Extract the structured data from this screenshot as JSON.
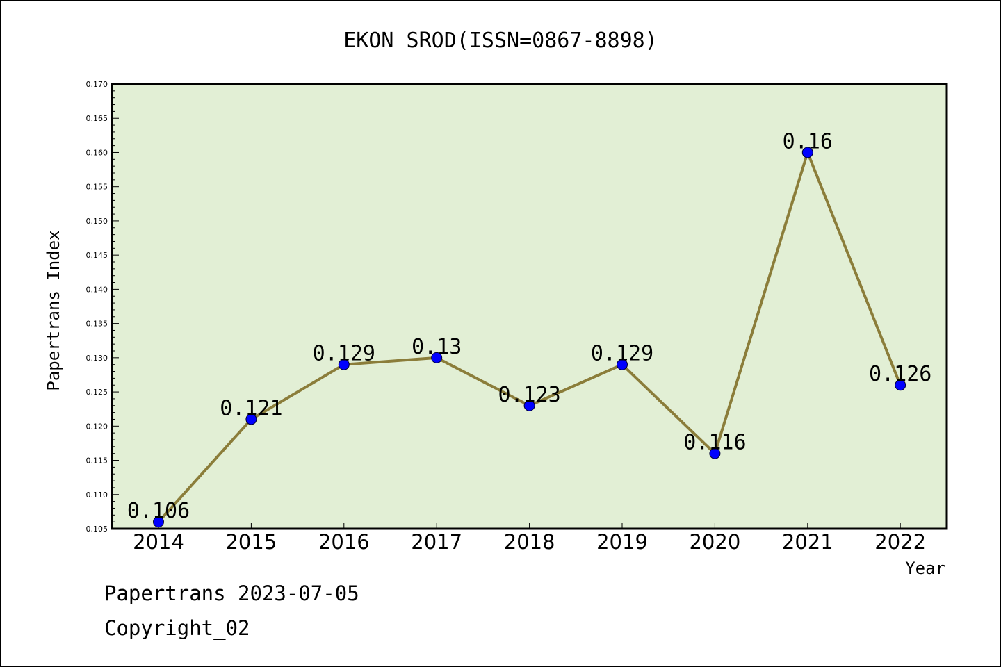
{
  "chart_data": {
    "type": "line",
    "title": "EKON SROD(ISSN=0867-8898)",
    "xlabel": "Year",
    "ylabel": "Papertrans Index",
    "categories": [
      "2014",
      "2015",
      "2016",
      "2017",
      "2018",
      "2019",
      "2020",
      "2021",
      "2022"
    ],
    "values": [
      0.106,
      0.121,
      0.129,
      0.13,
      0.123,
      0.129,
      0.116,
      0.16,
      0.126
    ],
    "data_labels": [
      "0.106",
      "0.121",
      "0.129",
      "0.13",
      "0.123",
      "0.129",
      "0.116",
      "0.16",
      "0.126"
    ],
    "ylim": [
      0.105,
      0.17
    ],
    "yticks": [
      "0.105",
      "0.110",
      "0.115",
      "0.120",
      "0.125",
      "0.130",
      "0.135",
      "0.140",
      "0.145",
      "0.150",
      "0.155",
      "0.160",
      "0.165",
      "0.170"
    ],
    "grid": false,
    "colors": {
      "plot_background": "#e2efd5",
      "line": "#8b7d3a",
      "marker": "#0000ff"
    }
  },
  "footer": {
    "line1": "Papertrans 2023-07-05",
    "line2": "Copyright_02"
  }
}
